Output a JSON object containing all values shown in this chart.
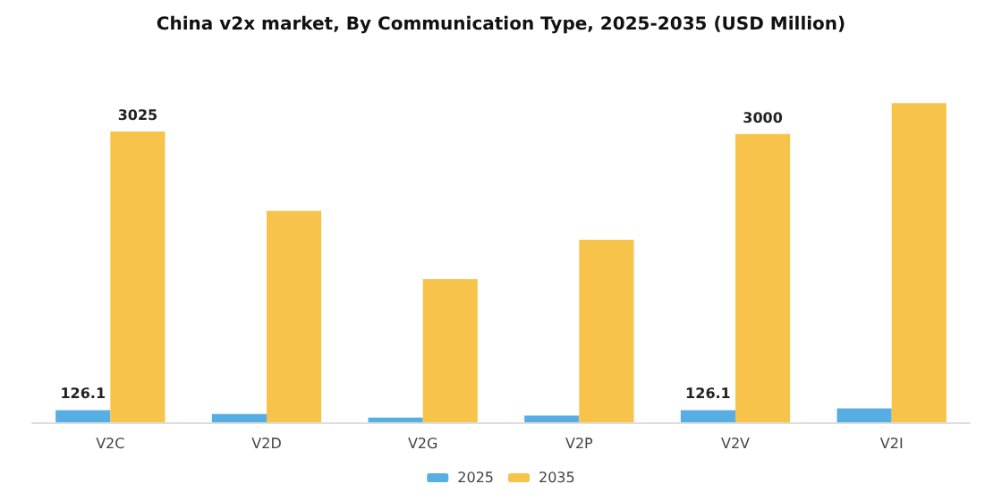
{
  "chart_data": {
    "type": "bar",
    "title": "China v2x market, By Communication Type, 2025-2035 (USD Million)",
    "categories": [
      "V2C",
      "V2D",
      "V2G",
      "V2P",
      "V2V",
      "V2I"
    ],
    "series": [
      {
        "name": "2025",
        "color": "#56aee2",
        "values": [
          126.1,
          85,
          50,
          70,
          126.1,
          145
        ],
        "value_labels": [
          "126.1",
          null,
          null,
          null,
          "126.1",
          null
        ]
      },
      {
        "name": "2035",
        "color": "#f8c34a",
        "values": [
          3025,
          2200,
          1490,
          1900,
          3000,
          3320
        ],
        "value_labels": [
          "3025",
          null,
          null,
          null,
          "3000",
          null
        ]
      }
    ],
    "legend": "bottom"
  }
}
